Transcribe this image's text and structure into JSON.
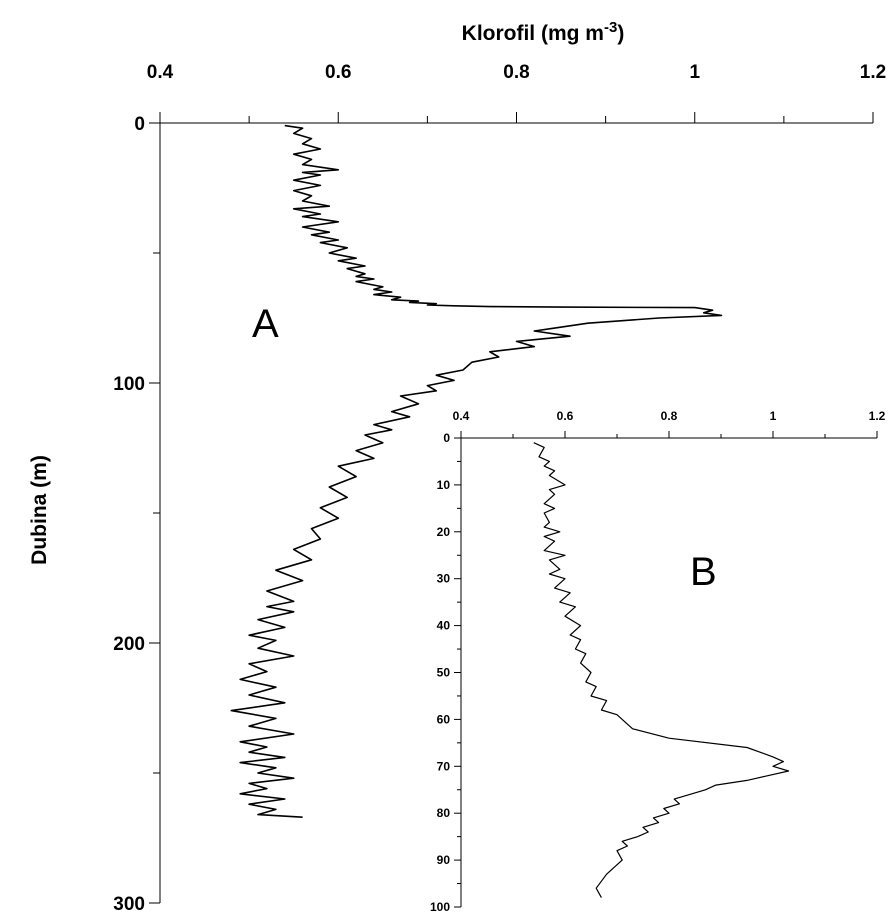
{
  "chart_data": [
    {
      "type": "line",
      "panel_label": "A",
      "title": "",
      "xlabel": "Klorofil (mg m",
      "xlabel_sup": "-3",
      "xlabel_close": ")",
      "ylabel": "Dubina (m)",
      "xlim": [
        0.4,
        1.2
      ],
      "ylim": [
        0,
        300
      ],
      "x_axis_position": "top",
      "y_inverted": true,
      "x_ticks": [
        "0.4",
        "0.6",
        "0.8",
        "1",
        "1.2"
      ],
      "y_ticks": [
        "0",
        "100",
        "200",
        "300"
      ],
      "grid": false,
      "series": [
        {
          "x": [
            0.54,
            0.56,
            0.55,
            0.57,
            0.56,
            0.58,
            0.55,
            0.57,
            0.56,
            0.6,
            0.56,
            0.58,
            0.55,
            0.58,
            0.55,
            0.57,
            0.56,
            0.59,
            0.55,
            0.58,
            0.56,
            0.6,
            0.56,
            0.59,
            0.57,
            0.6,
            0.58,
            0.61,
            0.59,
            0.62,
            0.6,
            0.63,
            0.61,
            0.63,
            0.62,
            0.64,
            0.62,
            0.65,
            0.64,
            0.66,
            0.64,
            0.67,
            0.66,
            0.69,
            0.68,
            0.71,
            0.7,
            0.73,
            0.77,
            0.85,
            1.0,
            1.02,
            1.01,
            1.03,
            0.96,
            0.88,
            0.84,
            0.82,
            0.86,
            0.8,
            0.82,
            0.77,
            0.78,
            0.75,
            0.74,
            0.71,
            0.73,
            0.7,
            0.71,
            0.67,
            0.69,
            0.66,
            0.68,
            0.64,
            0.66,
            0.63,
            0.65,
            0.62,
            0.64,
            0.6,
            0.62,
            0.59,
            0.61,
            0.58,
            0.6,
            0.57,
            0.58,
            0.55,
            0.57,
            0.53,
            0.56,
            0.52,
            0.55,
            0.52,
            0.55,
            0.51,
            0.54,
            0.5,
            0.53,
            0.51,
            0.55,
            0.5,
            0.52,
            0.49,
            0.53,
            0.5,
            0.54,
            0.48,
            0.53,
            0.5,
            0.55,
            0.49,
            0.52,
            0.5,
            0.54,
            0.49,
            0.53,
            0.51,
            0.55,
            0.5,
            0.52,
            0.49,
            0.54,
            0.5,
            0.53,
            0.51,
            0.56
          ],
          "y": [
            1,
            2,
            4,
            6,
            8,
            10,
            12,
            14,
            16,
            18,
            19,
            20,
            22,
            24,
            26,
            28,
            30,
            32,
            33,
            35,
            36,
            38,
            40,
            42,
            43,
            45,
            46,
            48,
            50,
            52,
            53,
            55,
            56,
            58,
            59,
            60,
            61,
            63,
            64,
            65,
            66,
            67,
            68,
            68.5,
            69,
            69.5,
            70,
            70.3,
            70.6,
            70.8,
            71,
            72,
            73,
            74,
            75,
            77,
            79,
            80,
            82,
            84,
            86,
            88,
            90,
            92,
            95,
            97,
            99,
            101,
            103,
            105,
            108,
            111,
            113,
            116,
            118,
            120,
            123,
            126,
            129,
            132,
            136,
            140,
            144,
            148,
            152,
            156,
            160,
            164,
            168,
            172,
            176,
            180,
            184,
            186,
            188,
            191,
            194,
            197,
            199,
            202,
            205,
            208,
            211,
            214,
            217,
            220,
            223,
            226,
            229,
            232,
            235,
            238,
            240,
            242,
            244,
            246,
            248,
            250,
            252,
            254,
            256,
            258,
            260,
            262,
            264,
            266,
            267
          ]
        }
      ]
    },
    {
      "type": "line",
      "panel_label": "B",
      "title": "",
      "xlabel": "",
      "ylabel": "",
      "xlim": [
        0.4,
        1.2
      ],
      "ylim": [
        0,
        100
      ],
      "x_axis_position": "top",
      "y_inverted": true,
      "x_ticks": [
        "0.4",
        "0.6",
        "0.8",
        "1",
        "1.2"
      ],
      "y_ticks": [
        "0",
        "10",
        "20",
        "30",
        "40",
        "50",
        "60",
        "70",
        "80",
        "90",
        "100"
      ],
      "grid": false,
      "series": [
        {
          "x": [
            0.54,
            0.56,
            0.55,
            0.57,
            0.56,
            0.58,
            0.57,
            0.6,
            0.57,
            0.58,
            0.56,
            0.58,
            0.56,
            0.57,
            0.56,
            0.59,
            0.56,
            0.58,
            0.56,
            0.6,
            0.57,
            0.59,
            0.57,
            0.6,
            0.58,
            0.61,
            0.59,
            0.62,
            0.6,
            0.63,
            0.61,
            0.63,
            0.62,
            0.64,
            0.63,
            0.65,
            0.64,
            0.66,
            0.65,
            0.68,
            0.67,
            0.7,
            0.71,
            0.73,
            0.8,
            0.95,
            1.0,
            1.02,
            1.0,
            1.03,
            0.99,
            0.95,
            0.89,
            0.87,
            0.84,
            0.81,
            0.82,
            0.79,
            0.8,
            0.77,
            0.78,
            0.75,
            0.76,
            0.74,
            0.71,
            0.72,
            0.7,
            0.71,
            0.68,
            0.66,
            0.67
          ],
          "y": [
            1,
            2,
            4,
            5,
            6,
            7,
            8,
            10,
            11,
            12,
            14,
            15,
            16,
            18,
            19,
            20,
            21,
            22,
            24,
            25,
            26,
            28,
            29,
            30,
            32,
            33,
            35,
            36,
            38,
            40,
            42,
            43,
            45,
            46,
            48,
            50,
            52,
            53,
            55,
            56,
            58,
            59,
            60,
            62,
            64,
            66,
            68,
            69,
            70,
            71,
            72,
            73,
            74,
            75,
            76,
            77,
            78,
            79,
            80,
            81,
            82,
            83,
            84,
            85,
            86,
            87,
            88,
            90,
            93,
            96,
            98
          ]
        }
      ]
    }
  ]
}
